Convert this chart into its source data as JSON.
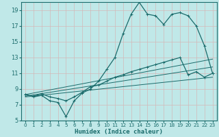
{
  "title": "",
  "xlabel": "Humidex (Indice chaleur)",
  "bg_color": "#c0e8e8",
  "grid_color": "#b0d8d8",
  "line_color": "#1a6b6b",
  "xlim": [
    -0.5,
    23.5
  ],
  "ylim": [
    5,
    20
  ],
  "yticks": [
    5,
    7,
    9,
    11,
    13,
    15,
    17,
    19
  ],
  "xticks": [
    0,
    1,
    2,
    3,
    4,
    5,
    6,
    7,
    8,
    9,
    10,
    11,
    12,
    13,
    14,
    15,
    16,
    17,
    18,
    19,
    20,
    21,
    22,
    23
  ],
  "main_x": [
    0,
    1,
    2,
    3,
    4,
    5,
    6,
    7,
    8,
    9,
    10,
    11,
    12,
    13,
    14,
    15,
    16,
    17,
    18,
    19,
    20,
    21,
    22,
    23
  ],
  "main_y": [
    8.3,
    8.0,
    8.2,
    7.5,
    7.3,
    5.5,
    7.5,
    8.5,
    9.0,
    10.0,
    11.5,
    13.0,
    16.0,
    18.5,
    20.0,
    18.5,
    18.3,
    17.2,
    18.5,
    18.7,
    18.3,
    17.0,
    14.5,
    11.0
  ],
  "line2_x": [
    0,
    1,
    2,
    3,
    4,
    5,
    6,
    7,
    8,
    9,
    10,
    11,
    12,
    13,
    14,
    15,
    16,
    17,
    18,
    19,
    20,
    21,
    22,
    23
  ],
  "line2_y": [
    8.3,
    8.1,
    8.4,
    8.0,
    7.8,
    7.5,
    8.0,
    8.6,
    9.3,
    9.5,
    10.0,
    10.5,
    10.8,
    11.2,
    11.5,
    11.8,
    12.1,
    12.4,
    12.7,
    13.0,
    10.8,
    11.2,
    10.5,
    11.0
  ],
  "line3_x": [
    0,
    23
  ],
  "line3_y": [
    8.3,
    12.8
  ],
  "line4_x": [
    0,
    23
  ],
  "line4_y": [
    8.0,
    10.5
  ],
  "line5_x": [
    0,
    23
  ],
  "line5_y": [
    8.1,
    11.8
  ]
}
